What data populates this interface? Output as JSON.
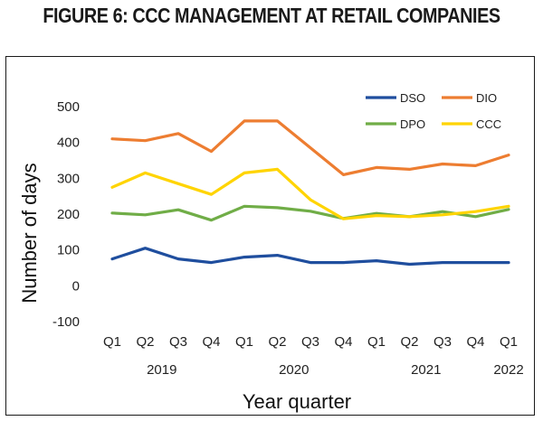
{
  "figure": {
    "title": "FIGURE 6: CCC MANAGEMENT AT RETAIL COMPANIES"
  },
  "chart_data": {
    "type": "line",
    "title": "",
    "xlabel": "Year quarter",
    "ylabel": "Number of days",
    "ylim": [
      -100,
      500
    ],
    "yticks": [
      "500",
      "400",
      "300",
      "200",
      "100",
      "0",
      "-100"
    ],
    "categories": [
      "Q1",
      "Q2",
      "Q3",
      "Q4",
      "Q1",
      "Q2",
      "Q3",
      "Q4",
      "Q1",
      "Q2",
      "Q3",
      "Q4",
      "Q1"
    ],
    "year_labels": [
      {
        "text": "2019",
        "at": 1.5
      },
      {
        "text": "2020",
        "at": 5.5
      },
      {
        "text": "2021",
        "at": 9.5
      },
      {
        "text": "2022",
        "at": 12
      }
    ],
    "grid": false,
    "legend_position": "top-right",
    "series": [
      {
        "name": "DSO",
        "color": "#1f4e9e",
        "values": [
          75,
          105,
          75,
          65,
          80,
          85,
          65,
          65,
          70,
          60,
          65,
          65,
          65
        ]
      },
      {
        "name": "DIO",
        "color": "#ed7d31",
        "values": [
          410,
          405,
          425,
          375,
          460,
          460,
          385,
          310,
          330,
          325,
          340,
          335,
          365
        ]
      },
      {
        "name": "DPO",
        "color": "#70ad47",
        "values": [
          203,
          198,
          212,
          183,
          222,
          218,
          208,
          188,
          202,
          193,
          207,
          193,
          213
        ]
      },
      {
        "name": "CCC",
        "color": "#ffd400",
        "values": [
          275,
          315,
          285,
          255,
          315,
          325,
          240,
          187,
          196,
          193,
          198,
          207,
          222
        ]
      }
    ]
  }
}
